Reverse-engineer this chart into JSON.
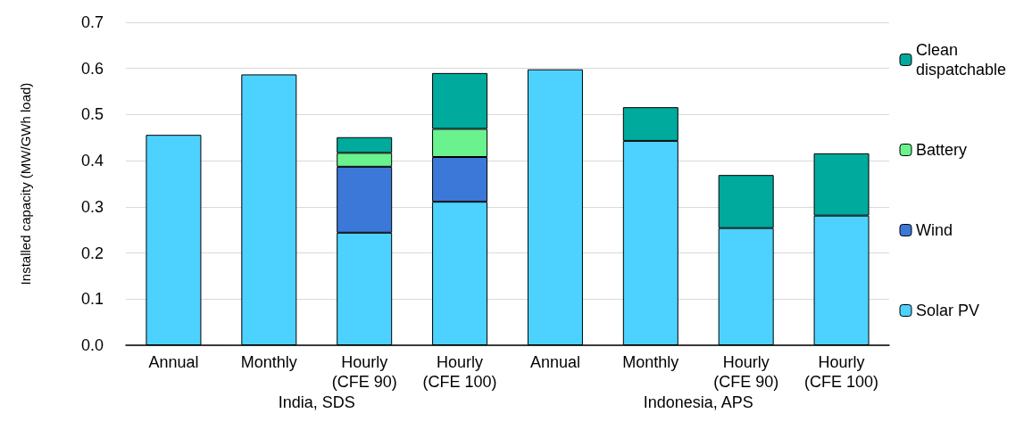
{
  "chart_data": {
    "type": "bar",
    "stacked": true,
    "ylabel": "Installed capacity (MW/GWh load)",
    "categories": [
      "Annual",
      "Monthly",
      "Hourly\n(CFE 90)",
      "Hourly\n(CFE 100)",
      "Annual",
      "Monthly",
      "Hourly\n(CFE 90)",
      "Hourly\n(CFE 100)"
    ],
    "series": [
      {
        "name": "Solar PV",
        "color": "#4dd2ff",
        "values": [
          0.456,
          0.587,
          0.244,
          0.311,
          0.598,
          0.443,
          0.254,
          0.281
        ]
      },
      {
        "name": "Wind",
        "color": "#3c78d8",
        "values": [
          null,
          null,
          0.143,
          0.097,
          null,
          null,
          null,
          null
        ]
      },
      {
        "name": "Battery",
        "color": "#6af28f",
        "values": [
          null,
          null,
          0.03,
          0.061,
          null,
          null,
          null,
          null
        ]
      },
      {
        "name": "Clean dispatchable",
        "color": "#00aa9c",
        "values": [
          null,
          null,
          0.034,
          0.121,
          null,
          0.073,
          0.115,
          0.135
        ]
      }
    ],
    "ylim": [
      0,
      0.7
    ],
    "yticks": [
      {
        "value": 0,
        "label": "0.0"
      },
      {
        "value": 0.1,
        "label": "0.1"
      },
      {
        "value": 0.2,
        "label": "0.2"
      },
      {
        "value": 0.3,
        "label": "0.3"
      },
      {
        "value": 0.4,
        "label": "0.4"
      },
      {
        "value": 0.5,
        "label": "0.5"
      },
      {
        "value": 0.6,
        "label": "0.6"
      },
      {
        "value": 0.7,
        "label": "0.7"
      }
    ],
    "grid": "y",
    "legend": "right",
    "annotations": [
      "India, SDS",
      "Indonesia, APS"
    ]
  }
}
